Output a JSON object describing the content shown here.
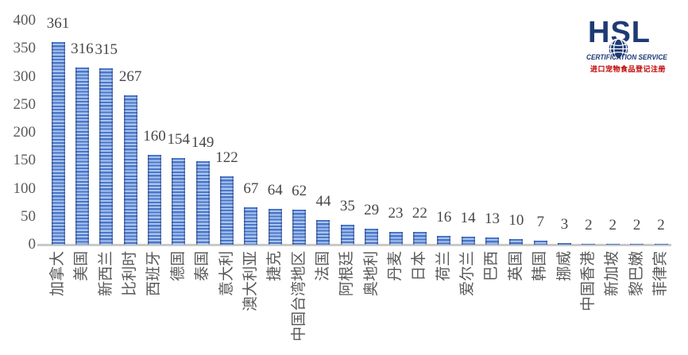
{
  "chart_data": {
    "type": "bar",
    "title": "",
    "xlabel": "",
    "ylabel": "",
    "categories": [
      "加拿大",
      "美国",
      "新西兰",
      "比利时",
      "西班牙",
      "德国",
      "泰国",
      "意大利",
      "澳大利亚",
      "捷克",
      "中国台湾地区",
      "法国",
      "阿根廷",
      "奥地利",
      "丹麦",
      "日本",
      "荷兰",
      "爱尔兰",
      "巴西",
      "英国",
      "韩国",
      "挪威",
      "中国香港",
      "新加坡",
      "黎巴嫩",
      "菲律宾"
    ],
    "values": [
      361,
      316,
      315,
      267,
      160,
      154,
      149,
      122,
      67,
      64,
      62,
      44,
      35,
      29,
      23,
      22,
      16,
      14,
      13,
      10,
      7,
      3,
      2,
      2,
      2,
      2
    ],
    "value_labels": [
      "361",
      "316",
      "315",
      "267",
      "160",
      "154",
      "149",
      "122",
      "67",
      "64",
      "62",
      "44",
      "35",
      "29",
      "23",
      "22",
      "16",
      "14",
      "13",
      "10",
      "7",
      "3",
      "2",
      "2",
      "2",
      "2"
    ],
    "y_ticks": [
      0,
      50,
      100,
      150,
      200,
      250,
      300,
      350,
      400
    ],
    "ylim": [
      0,
      400
    ],
    "grid": false,
    "legend": "none",
    "x_label_rotation": -90,
    "bar_color": "#4a77cb",
    "bar_stripe_color": "#abc4ed",
    "axis_line_color": "#c9c9c9",
    "tick_label_color": "#595959",
    "value_label_color": "#474747"
  },
  "logo": {
    "title": "HSL",
    "subtitle": "CERTIFICATION SERVICE",
    "tagline": "进口宠物食品登记注册",
    "brand_color": "#1e3a74",
    "tagline_color": "#c00000"
  }
}
